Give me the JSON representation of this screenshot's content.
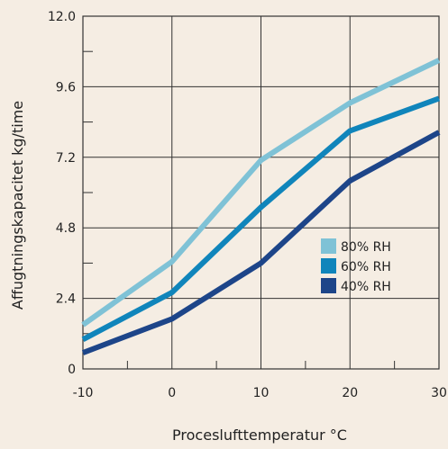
{
  "chart_data": {
    "type": "line",
    "title": "",
    "xlabel": "Proceslufttemperatur °C",
    "ylabel": "Affugtningskapacitet kg/time",
    "x": [
      -10,
      0,
      10,
      20,
      30
    ],
    "xlim": [
      -10,
      30
    ],
    "ylim": [
      0,
      12
    ],
    "x_ticks": [
      "-10",
      "0",
      "10",
      "20",
      "30"
    ],
    "y_ticks": [
      "0",
      "2.4",
      "4.8",
      "7.2",
      "9.6",
      "12.0"
    ],
    "grid": true,
    "legend_position": "center-right",
    "series": [
      {
        "name": "80% RH",
        "color": "#7fc2d6",
        "values": [
          1.5,
          3.65,
          7.1,
          9.05,
          10.5
        ]
      },
      {
        "name": "60% RH",
        "color": "#1085bb",
        "values": [
          1.0,
          2.6,
          5.5,
          8.1,
          9.2
        ]
      },
      {
        "name": "40% RH",
        "color": "#1d4589",
        "values": [
          0.55,
          1.7,
          3.6,
          6.4,
          8.05
        ]
      }
    ]
  }
}
